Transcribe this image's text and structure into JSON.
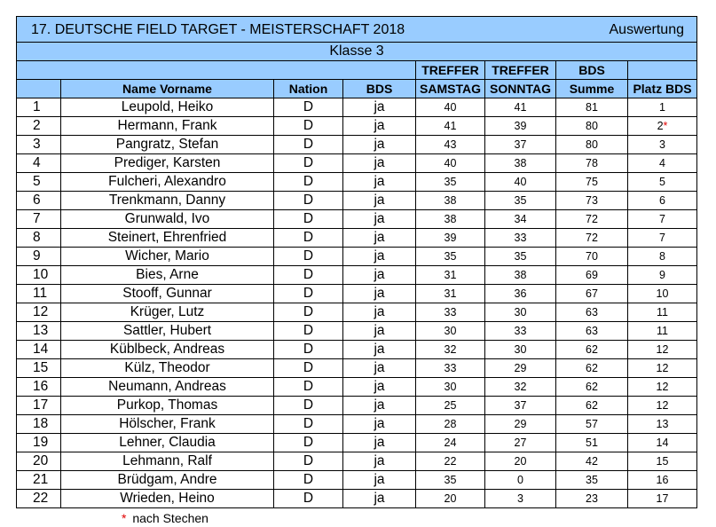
{
  "header": {
    "title": "17. DEUTSCHE FIELD TARGET - MEISTERSCHAFT 2018",
    "subtitle": "Auswertung",
    "klasse": "Klasse 3"
  },
  "columns": {
    "name": "Name Vorname",
    "nation": "Nation",
    "bds": "BDS",
    "treffer_sa_top": "TREFFER",
    "treffer_sa_bottom": "SAMSTAG",
    "treffer_so_top": "TREFFER",
    "treffer_so_bottom": "SONNTAG",
    "summe_top": "BDS",
    "summe_bottom": "Summe",
    "platz": "Platz BDS"
  },
  "rows": [
    {
      "rank": "1",
      "name": "Leupold, Heiko",
      "nation": "D",
      "bds": "ja",
      "sa": "40",
      "so": "41",
      "summe": "81",
      "platz": "1",
      "mark": ""
    },
    {
      "rank": "2",
      "name": "Hermann, Frank",
      "nation": "D",
      "bds": "ja",
      "sa": "41",
      "so": "39",
      "summe": "80",
      "platz": "2",
      "mark": "*"
    },
    {
      "rank": "3",
      "name": "Pangratz, Stefan",
      "nation": "D",
      "bds": "ja",
      "sa": "43",
      "so": "37",
      "summe": "80",
      "platz": "3",
      "mark": ""
    },
    {
      "rank": "4",
      "name": "Prediger, Karsten",
      "nation": "D",
      "bds": "ja",
      "sa": "40",
      "so": "38",
      "summe": "78",
      "platz": "4",
      "mark": ""
    },
    {
      "rank": "5",
      "name": "Fulcheri, Alexandro",
      "nation": "D",
      "bds": "ja",
      "sa": "35",
      "so": "40",
      "summe": "75",
      "platz": "5",
      "mark": ""
    },
    {
      "rank": "6",
      "name": "Trenkmann, Danny",
      "nation": "D",
      "bds": "ja",
      "sa": "38",
      "so": "35",
      "summe": "73",
      "platz": "6",
      "mark": ""
    },
    {
      "rank": "7",
      "name": "Grunwald, Ivo",
      "nation": "D",
      "bds": "ja",
      "sa": "38",
      "so": "34",
      "summe": "72",
      "platz": "7",
      "mark": ""
    },
    {
      "rank": "8",
      "name": "Steinert, Ehrenfried",
      "nation": "D",
      "bds": "ja",
      "sa": "39",
      "so": "33",
      "summe": "72",
      "platz": "7",
      "mark": ""
    },
    {
      "rank": "9",
      "name": "Wicher, Mario",
      "nation": "D",
      "bds": "ja",
      "sa": "35",
      "so": "35",
      "summe": "70",
      "platz": "8",
      "mark": ""
    },
    {
      "rank": "10",
      "name": "Bies, Arne",
      "nation": "D",
      "bds": "ja",
      "sa": "31",
      "so": "38",
      "summe": "69",
      "platz": "9",
      "mark": ""
    },
    {
      "rank": "11",
      "name": "Stooff, Gunnar",
      "nation": "D",
      "bds": "ja",
      "sa": "31",
      "so": "36",
      "summe": "67",
      "platz": "10",
      "mark": ""
    },
    {
      "rank": "12",
      "name": "Krüger, Lutz",
      "nation": "D",
      "bds": "ja",
      "sa": "33",
      "so": "30",
      "summe": "63",
      "platz": "11",
      "mark": ""
    },
    {
      "rank": "13",
      "name": "Sattler, Hubert",
      "nation": "D",
      "bds": "ja",
      "sa": "30",
      "so": "33",
      "summe": "63",
      "platz": "11",
      "mark": ""
    },
    {
      "rank": "14",
      "name": "Küblbeck, Andreas",
      "nation": "D",
      "bds": "ja",
      "sa": "32",
      "so": "30",
      "summe": "62",
      "platz": "12",
      "mark": ""
    },
    {
      "rank": "15",
      "name": "Külz, Theodor",
      "nation": "D",
      "bds": "ja",
      "sa": "33",
      "so": "29",
      "summe": "62",
      "platz": "12",
      "mark": ""
    },
    {
      "rank": "16",
      "name": "Neumann, Andreas",
      "nation": "D",
      "bds": "ja",
      "sa": "30",
      "so": "32",
      "summe": "62",
      "platz": "12",
      "mark": ""
    },
    {
      "rank": "17",
      "name": "Purkop, Thomas",
      "nation": "D",
      "bds": "ja",
      "sa": "25",
      "so": "37",
      "summe": "62",
      "platz": "12",
      "mark": ""
    },
    {
      "rank": "18",
      "name": "Hölscher, Frank",
      "nation": "D",
      "bds": "ja",
      "sa": "28",
      "so": "29",
      "summe": "57",
      "platz": "13",
      "mark": ""
    },
    {
      "rank": "19",
      "name": "Lehner, Claudia",
      "nation": "D",
      "bds": "ja",
      "sa": "24",
      "so": "27",
      "summe": "51",
      "platz": "14",
      "mark": ""
    },
    {
      "rank": "20",
      "name": "Lehmann, Ralf",
      "nation": "D",
      "bds": "ja",
      "sa": "22",
      "so": "20",
      "summe": "42",
      "platz": "15",
      "mark": ""
    },
    {
      "rank": "21",
      "name": "Brüdgam, Andre",
      "nation": "D",
      "bds": "ja",
      "sa": "35",
      "so": "0",
      "summe": "35",
      "platz": "16",
      "mark": ""
    },
    {
      "rank": "22",
      "name": "Wrieden, Heino",
      "nation": "D",
      "bds": "ja",
      "sa": "20",
      "so": "3",
      "summe": "23",
      "platz": "17",
      "mark": ""
    }
  ],
  "footnote": {
    "mark": "*",
    "text": "nach Stechen"
  },
  "colors": {
    "header_fill": "#99ccff",
    "mark_color": "#e00000"
  }
}
